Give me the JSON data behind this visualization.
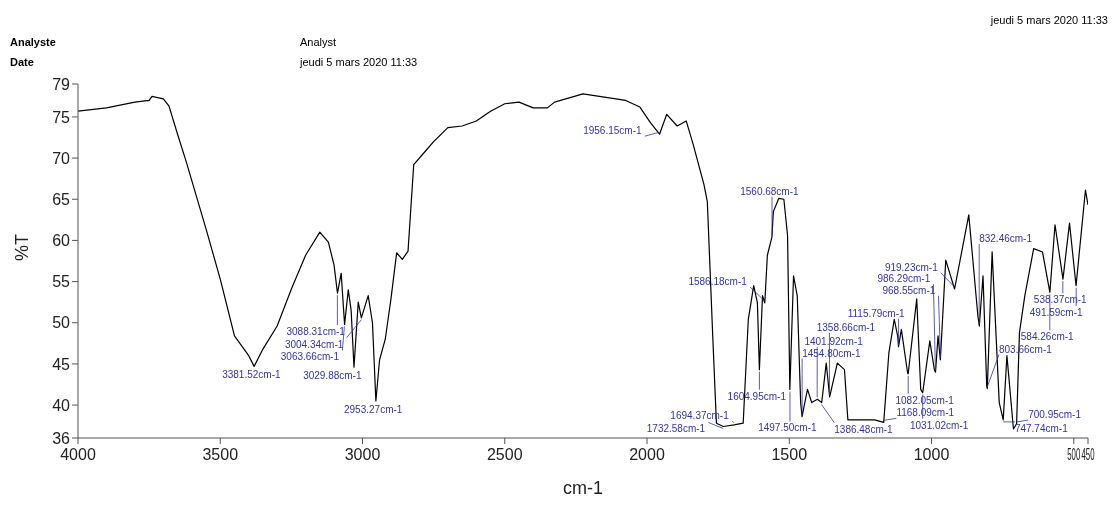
{
  "chart_data": {
    "type": "line",
    "xlabel": "cm-1",
    "ylabel": "%T",
    "xlim": [
      4000,
      450
    ],
    "xticks": [
      4000,
      3500,
      3000,
      2500,
      2000,
      1500,
      1000,
      500,
      450
    ],
    "ylim": [
      36,
      79
    ],
    "yticks": [
      36,
      40,
      45,
      50,
      55,
      60,
      65,
      70,
      75,
      79
    ],
    "grid": false,
    "legend": false,
    "marker": "none",
    "line_style": "solid",
    "series": [
      {
        "color": "#000000",
        "x": [
          4000,
          3900,
          3800,
          3750,
          3740,
          3700,
          3680,
          3650,
          3620,
          3550,
          3500,
          3450,
          3400,
          3381,
          3350,
          3300,
          3250,
          3200,
          3150,
          3120,
          3100,
          3088,
          3075,
          3063,
          3050,
          3040,
          3030,
          3015,
          3004,
          2980,
          2965,
          2953,
          2940,
          2920,
          2900,
          2880,
          2860,
          2840,
          2820,
          2780,
          2750,
          2700,
          2650,
          2600,
          2550,
          2500,
          2450,
          2400,
          2350,
          2325,
          2225,
          2150,
          2075,
          2025,
          1988,
          1956,
          1931,
          1894,
          1862,
          1838,
          1800,
          1788,
          1769,
          1756,
          1732,
          1694,
          1662,
          1644,
          1625,
          1612,
          1605,
          1594,
          1586,
          1577,
          1561,
          1556,
          1537,
          1519,
          1506,
          1498,
          1485,
          1472,
          1460,
          1455,
          1436,
          1421,
          1401,
          1386,
          1370,
          1358,
          1331,
          1306,
          1294,
          1200,
          1168,
          1150,
          1131,
          1119,
          1116,
          1106,
          1084,
          1082,
          1052,
          1038,
          1031,
          1006,
          990,
          986,
          977,
          969,
          950,
          919,
          869,
          837,
          832,
          819,
          806,
          804,
          787,
          762,
          748,
          735,
          712,
          701,
          691,
          672,
          641,
          610,
          584,
          566,
          538,
          515,
          492,
          459,
          450
        ],
        "values": [
          75.7,
          76.1,
          76.8,
          77.0,
          77.5,
          77.2,
          76.3,
          72.9,
          69.6,
          61.4,
          55.3,
          48.4,
          46.0,
          44.7,
          46.8,
          49.6,
          54.1,
          58.2,
          61.0,
          59.8,
          57.0,
          53.6,
          56.0,
          49.8,
          54.0,
          51.5,
          44.6,
          52.5,
          50.6,
          53.3,
          50.0,
          40.5,
          45.5,
          48.0,
          52.9,
          58.5,
          57.7,
          58.7,
          69.2,
          70.8,
          72.0,
          73.7,
          73.9,
          74.5,
          75.7,
          76.6,
          76.8,
          76.1,
          76.1,
          76.8,
          77.8,
          77.4,
          77.0,
          76.2,
          74.3,
          72.9,
          75.3,
          73.9,
          74.5,
          71.7,
          66.8,
          64.7,
          48.4,
          37.8,
          37.4,
          37.6,
          37.8,
          50.4,
          54.5,
          52.4,
          44.3,
          53.3,
          52.4,
          58.2,
          60.4,
          63.5,
          65.1,
          65.0,
          60.6,
          41.9,
          55.7,
          53.3,
          40.3,
          38.6,
          41.9,
          40.3,
          40.7,
          40.3,
          45.1,
          41.0,
          45.1,
          44.3,
          38.2,
          38.2,
          37.9,
          46.3,
          50.4,
          48.4,
          47.1,
          49.2,
          43.9,
          43.8,
          52.9,
          41.9,
          41.5,
          47.8,
          44.3,
          44.0,
          48.4,
          45.5,
          57.6,
          54.1,
          63.1,
          50.8,
          49.6,
          55.7,
          42.3,
          42.0,
          58.6,
          40.3,
          38.2,
          46.0,
          37.1,
          37.7,
          48.8,
          53.3,
          59.0,
          58.6,
          53.7,
          61.9,
          55.3,
          62.1,
          54.5,
          66.1,
          64.3
        ]
      }
    ],
    "annotations": [
      "Analyste",
      "Date",
      "Analyst",
      "jeudi 5 mars 2020 11:33",
      "jeudi 5 mars 2020 11:33",
      {
        "text": "3381.52cm-1",
        "x": 3381.52,
        "y": 44.7
      },
      {
        "text": "3088.31cm-1",
        "x": 3088.31,
        "y": 53.6
      },
      {
        "text": "3004.34cm-1",
        "x": 3004.34,
        "y": 50.6
      },
      {
        "text": "3063.66cm-1",
        "x": 3063.66,
        "y": 49.8
      },
      {
        "text": "3029.88cm-1",
        "x": 3029.88,
        "y": 44.6
      },
      {
        "text": "2953.27cm-1",
        "x": 2953.27,
        "y": 40.5
      },
      {
        "text": "1956.15cm-1",
        "x": 1956.15,
        "y": 72.9
      },
      {
        "text": "1560.68cm-1",
        "x": 1560.68,
        "y": 60.4
      },
      {
        "text": "1586.18cm-1",
        "x": 1586.18,
        "y": 52.4
      },
      {
        "text": "1497.50cm-1",
        "x": 1497.5,
        "y": 41.9
      },
      {
        "text": "1386.48cm-1",
        "x": 1386.48,
        "y": 40.3
      },
      {
        "text": "1604.95cm-1",
        "x": 1604.95,
        "y": 44.3
      },
      {
        "text": "1694.37cm-1",
        "x": 1694.37,
        "y": 37.6
      },
      {
        "text": "1454.80cm-1",
        "x": 1454.8,
        "y": 38.6
      },
      {
        "text": "1732.58cm-1",
        "x": 1732.58,
        "y": 37.4
      },
      {
        "text": "1401.92cm-1",
        "x": 1401.92,
        "y": 40.7
      },
      {
        "text": "1358.66cm-1",
        "x": 1358.66,
        "y": 41.0
      },
      {
        "text": "1168.09cm-1",
        "x": 1168.09,
        "y": 37.9
      },
      {
        "text": "1115.79cm-1",
        "x": 1115.79,
        "y": 47.1
      },
      {
        "text": "1082.05cm-1",
        "x": 1082.05,
        "y": 43.8
      },
      {
        "text": "1031.02cm-1",
        "x": 1031.02,
        "y": 41.5
      },
      {
        "text": "968.55cm-1",
        "x": 968.55,
        "y": 45.5
      },
      {
        "text": "986.29cm-1",
        "x": 986.29,
        "y": 44.0
      },
      {
        "text": "919.23cm-1",
        "x": 919.23,
        "y": 54.1
      },
      {
        "text": "832.46cm-1",
        "x": 832.46,
        "y": 49.6
      },
      {
        "text": "803.66cm-1",
        "x": 803.66,
        "y": 42.0
      },
      {
        "text": "747.74cm-1",
        "x": 747.74,
        "y": 38.2
      },
      {
        "text": "700.95cm-1",
        "x": 700.95,
        "y": 37.7
      },
      {
        "text": "584.26cm-1",
        "x": 584.26,
        "y": 53.7
      },
      {
        "text": "538.37cm-1",
        "x": 538.37,
        "y": 55.3
      },
      {
        "text": "491.59cm-1",
        "x": 491.59,
        "y": 54.5
      }
    ]
  }
}
